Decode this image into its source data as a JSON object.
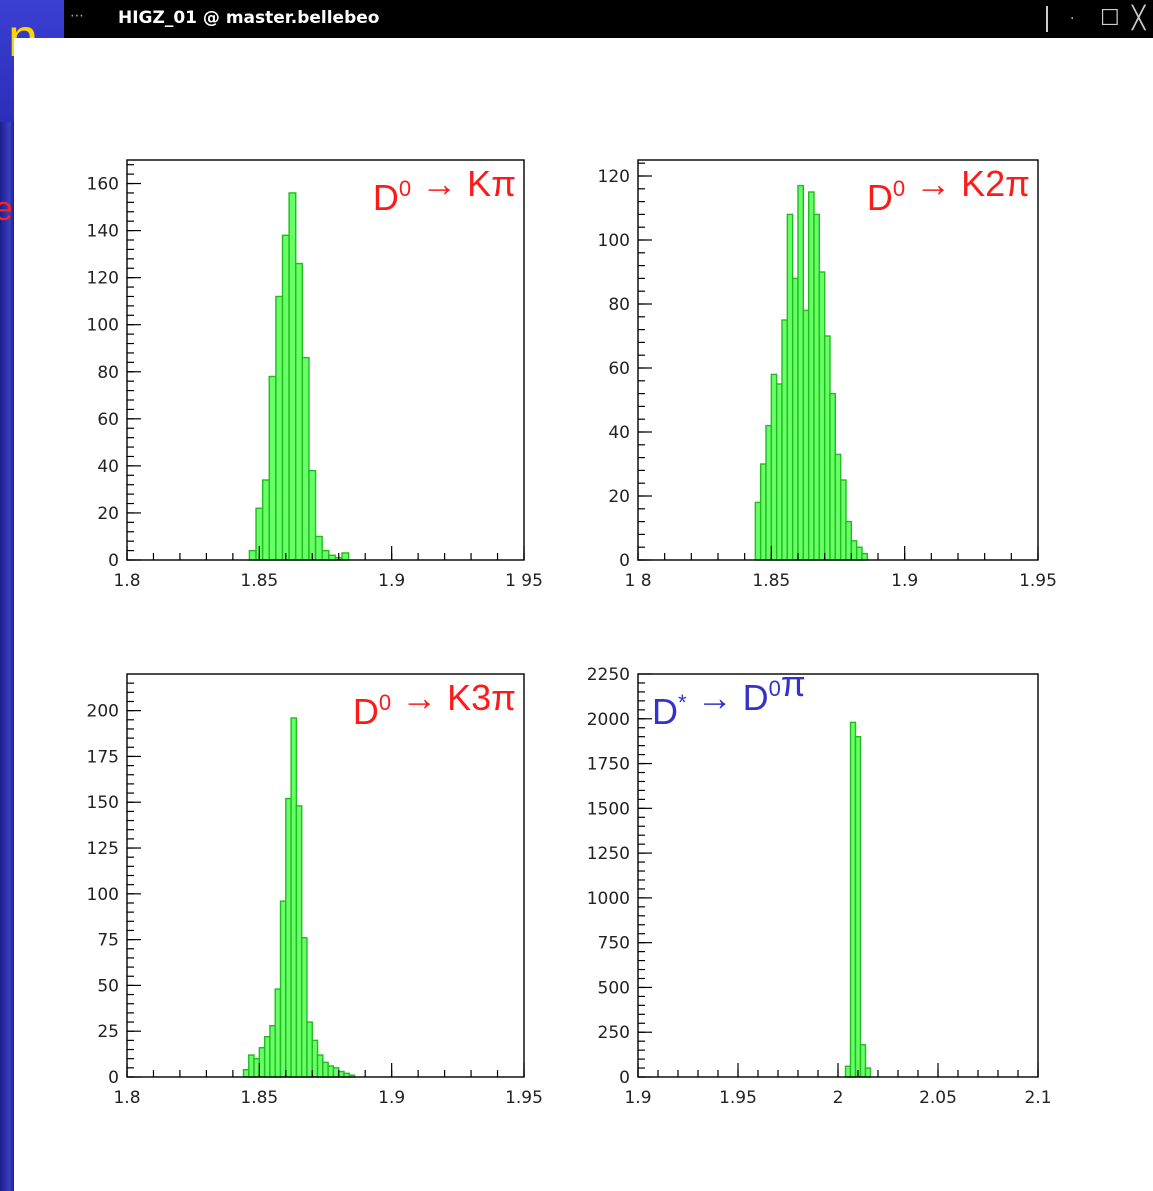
{
  "slide": {
    "title_fragment": "n",
    "side_fragment": "e"
  },
  "window": {
    "title": "HIGZ_01 @ master.bellebeo",
    "menu_icon": "window-menu-icon",
    "controls": {
      "minimize": "·",
      "maximize": "☐",
      "close": "╳"
    }
  },
  "colors": {
    "histogram_fill": "#66ff66",
    "histogram_edge": "#22bb22",
    "label_red": "#ff1a1a",
    "label_blue": "#3333cc"
  },
  "chart_data": [
    {
      "type": "bar",
      "decay": {
        "parent": "D",
        "parent_sup": "0",
        "arrow": "→",
        "products": "K",
        "products_sup": "",
        "tail": "π",
        "color": "#ff1a1a"
      },
      "xlim": [
        1.8,
        1.95
      ],
      "ylim": [
        0,
        170
      ],
      "xticks": [
        "1.8",
        "1.85",
        "1.9",
        "1 95"
      ],
      "xtick_values": [
        1.8,
        1.85,
        1.9,
        1.95
      ],
      "yticks": [
        0,
        20,
        40,
        60,
        80,
        100,
        120,
        140,
        160
      ],
      "bin_width": 0.0025,
      "x": [
        1.8475,
        1.85,
        1.8525,
        1.855,
        1.8575,
        1.86,
        1.8625,
        1.865,
        1.8675,
        1.87,
        1.8725,
        1.875,
        1.8775,
        1.88,
        1.8825
      ],
      "values": [
        4,
        22,
        34,
        78,
        112,
        138,
        156,
        126,
        86,
        38,
        10,
        4,
        2,
        1,
        3
      ]
    },
    {
      "type": "bar",
      "decay": {
        "parent": "D",
        "parent_sup": "0",
        "arrow": "→",
        "products": "K2",
        "products_sup": "",
        "tail": "π",
        "color": "#ff1a1a"
      },
      "xlim": [
        1.8,
        1.95
      ],
      "ylim": [
        0,
        125
      ],
      "xticks": [
        "1 8",
        "1.85",
        "1.9",
        "1.95"
      ],
      "xtick_values": [
        1.8,
        1.85,
        1.9,
        1.95
      ],
      "yticks": [
        0,
        20,
        40,
        60,
        80,
        100,
        120
      ],
      "bin_width": 0.002,
      "x": [
        1.845,
        1.847,
        1.849,
        1.851,
        1.853,
        1.855,
        1.857,
        1.859,
        1.861,
        1.863,
        1.865,
        1.867,
        1.869,
        1.871,
        1.873,
        1.875,
        1.877,
        1.879,
        1.881,
        1.883,
        1.885
      ],
      "values": [
        18,
        30,
        42,
        58,
        55,
        75,
        108,
        88,
        117,
        78,
        115,
        108,
        90,
        70,
        52,
        33,
        25,
        12,
        6,
        4,
        2
      ]
    },
    {
      "type": "bar",
      "decay": {
        "parent": "D",
        "parent_sup": "0",
        "arrow": "→",
        "products": "K3",
        "products_sup": "",
        "tail": "π",
        "color": "#ff1a1a"
      },
      "xlim": [
        1.8,
        1.95
      ],
      "ylim": [
        0,
        220
      ],
      "xticks": [
        "1.8",
        "1.85",
        "1.9",
        "1.95"
      ],
      "xtick_values": [
        1.8,
        1.85,
        1.9,
        1.95
      ],
      "yticks": [
        0,
        25,
        50,
        75,
        100,
        125,
        150,
        175,
        200
      ],
      "bin_width": 0.002,
      "x": [
        1.845,
        1.847,
        1.849,
        1.851,
        1.853,
        1.855,
        1.857,
        1.859,
        1.861,
        1.863,
        1.865,
        1.867,
        1.869,
        1.871,
        1.873,
        1.875,
        1.877,
        1.879,
        1.881,
        1.883,
        1.885
      ],
      "values": [
        4,
        12,
        10,
        16,
        22,
        28,
        48,
        96,
        152,
        196,
        148,
        76,
        30,
        20,
        12,
        8,
        6,
        5,
        3,
        2,
        1
      ]
    },
    {
      "type": "bar",
      "decay": {
        "parent": "D",
        "parent_sup": "*",
        "arrow": "→",
        "products": "D",
        "products_sup": "0",
        "tail": "π",
        "color": "#3333cc"
      },
      "xlim": [
        1.9,
        2.1
      ],
      "ylim": [
        0,
        2250
      ],
      "xticks": [
        "1.9",
        "1.95",
        "2",
        "2.05",
        "2.1"
      ],
      "xtick_values": [
        1.9,
        1.95,
        2.0,
        2.05,
        2.1
      ],
      "yticks": [
        0,
        250,
        500,
        750,
        1000,
        1250,
        1500,
        1750,
        2000,
        2250
      ],
      "bin_width": 0.0025,
      "x": [
        2.005,
        2.0075,
        2.01,
        2.0125,
        2.015
      ],
      "values": [
        60,
        1980,
        1900,
        180,
        50
      ]
    }
  ]
}
